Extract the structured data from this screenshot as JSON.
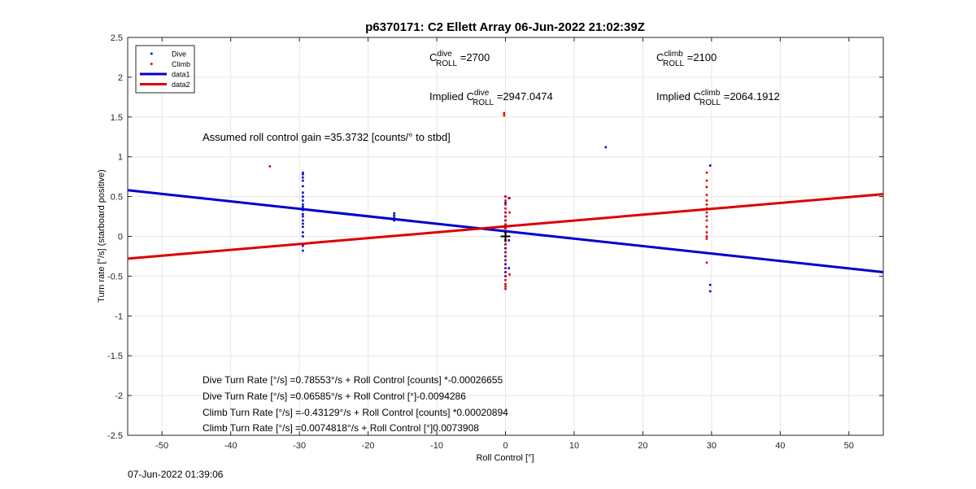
{
  "chart_data": {
    "type": "scatter",
    "title": "p6370171: C2 Ellett Array 06-Jun-2022 21:02:39Z",
    "xlabel": "Roll Control [°]",
    "ylabel": "Turn rate [°/s] (starboard positive)",
    "xlim": [
      -55,
      55
    ],
    "ylim": [
      -2.5,
      2.5
    ],
    "xticks": [
      -50,
      -40,
      -30,
      -20,
      -10,
      0,
      10,
      20,
      30,
      40,
      50
    ],
    "yticks": [
      -2.5,
      -2,
      -1.5,
      -1,
      -0.5,
      0,
      0.5,
      1,
      1.5,
      2,
      2.5
    ],
    "grid": true,
    "legend": {
      "placement": "top-left",
      "entries": [
        {
          "label": "Dive",
          "kind": "marker",
          "color": "#0000cc"
        },
        {
          "label": "Climb",
          "kind": "marker",
          "color": "#dd0000"
        },
        {
          "label": "data1",
          "kind": "line",
          "color": "#0000cc"
        },
        {
          "label": "data2",
          "kind": "line",
          "color": "#dd0000"
        }
      ]
    },
    "series": [
      {
        "name": "Dive",
        "color": "#0000cc",
        "points": [
          [
            -29.5,
            0.8
          ],
          [
            -29.5,
            0.78
          ],
          [
            -29.5,
            0.74
          ],
          [
            -29.5,
            0.7
          ],
          [
            -29.5,
            0.63
          ],
          [
            -29.5,
            0.55
          ],
          [
            -29.5,
            0.5
          ],
          [
            -29.5,
            0.45
          ],
          [
            -29.5,
            0.4
          ],
          [
            -29.5,
            0.37
          ],
          [
            -29.5,
            0.33
          ],
          [
            -29.5,
            0.28
          ],
          [
            -29.5,
            0.25
          ],
          [
            -29.5,
            0.2
          ],
          [
            -29.5,
            0.16
          ],
          [
            -29.5,
            0.12
          ],
          [
            -29.5,
            0.05
          ],
          [
            -29.5,
            0.0
          ],
          [
            -29.5,
            -0.12
          ],
          [
            -29.5,
            -0.18
          ],
          [
            -16.2,
            0.29
          ],
          [
            -16.2,
            0.26
          ],
          [
            -16.2,
            0.23
          ],
          [
            -16.2,
            0.2
          ],
          [
            0,
            0.5
          ],
          [
            0,
            0.42
          ],
          [
            0,
            0.3
          ],
          [
            0,
            0.25
          ],
          [
            0,
            0.2
          ],
          [
            0,
            0.15
          ],
          [
            0,
            0.1
          ],
          [
            0,
            0.05
          ],
          [
            0,
            0.0
          ],
          [
            0,
            -0.05
          ],
          [
            0,
            -0.1
          ],
          [
            0,
            -0.15
          ],
          [
            0,
            -0.2
          ],
          [
            0,
            -0.25
          ],
          [
            0,
            -0.3
          ],
          [
            0,
            -0.35
          ],
          [
            0,
            -0.4
          ],
          [
            0,
            -0.45
          ],
          [
            0,
            -0.5
          ],
          [
            0.5,
            0.48
          ],
          [
            0.5,
            -0.05
          ],
          [
            0.5,
            -0.4
          ],
          [
            14.6,
            1.12
          ],
          [
            29.8,
            0.89
          ],
          [
            29.8,
            -0.61
          ],
          [
            29.8,
            -0.69
          ]
        ]
      },
      {
        "name": "Climb",
        "color": "#dd0000",
        "points": [
          [
            -34.3,
            0.88
          ],
          [
            -0.2,
            1.55
          ],
          [
            -0.2,
            1.52
          ],
          [
            0,
            0.5
          ],
          [
            0,
            0.45
          ],
          [
            0,
            0.4
          ],
          [
            0,
            0.35
          ],
          [
            0,
            0.3
          ],
          [
            0,
            0.25
          ],
          [
            0,
            0.2
          ],
          [
            0,
            0.15
          ],
          [
            0,
            0.1
          ],
          [
            0,
            0.05
          ],
          [
            0,
            0.0
          ],
          [
            0,
            -0.05
          ],
          [
            0,
            -0.1
          ],
          [
            0,
            -0.2
          ],
          [
            0,
            -0.3
          ],
          [
            0,
            -0.4
          ],
          [
            0,
            -0.5
          ],
          [
            0,
            -0.55
          ],
          [
            0,
            -0.6
          ],
          [
            0,
            -0.63
          ],
          [
            0,
            -0.66
          ],
          [
            0.6,
            0.48
          ],
          [
            0.6,
            0.3
          ],
          [
            0.6,
            -0.48
          ],
          [
            29.3,
            0.8
          ],
          [
            29.3,
            0.7
          ],
          [
            29.3,
            0.62
          ],
          [
            29.3,
            0.52
          ],
          [
            29.3,
            0.45
          ],
          [
            29.3,
            0.4
          ],
          [
            29.3,
            0.35
          ],
          [
            29.3,
            0.3
          ],
          [
            29.3,
            0.25
          ],
          [
            29.3,
            0.2
          ],
          [
            29.3,
            0.12
          ],
          [
            29.3,
            0.05
          ],
          [
            29.3,
            0.0
          ],
          [
            29.3,
            -0.03
          ],
          [
            29.3,
            -0.33
          ]
        ]
      },
      {
        "name": "data1",
        "color": "#0000cc",
        "line": [
          [
            -55,
            0.58
          ],
          [
            55,
            -0.45
          ]
        ]
      },
      {
        "name": "data2",
        "color": "#dd0000",
        "line": [
          [
            -55,
            -0.28
          ],
          [
            55,
            0.53
          ]
        ]
      }
    ],
    "marker": {
      "x": 0,
      "y": 0,
      "shape": "plus",
      "color": "#000000"
    },
    "annotations": {
      "c_dive": {
        "pre": "C",
        "sup": "dive",
        "sub": "ROLL",
        "post": " =2700"
      },
      "c_climb": {
        "pre": "C",
        "sup": "climb",
        "sub": "ROLL",
        "post": " =2100"
      },
      "implied_dive": {
        "pre": "Implied C",
        "sup": "dive",
        "sub": "ROLL",
        "post": " =2947.0474"
      },
      "implied_climb": {
        "pre": "Implied C",
        "sup": "climb",
        "sub": "ROLL",
        "post": " =2064.1912"
      },
      "gain": "Assumed roll control gain =35.3732 [counts/° to stbd]",
      "fits": [
        "Dive Turn Rate [°/s] =0.78553°/s + Roll Control [counts] *-0.00026655",
        "Dive Turn Rate [°/s] =0.06585°/s + Roll Control [°]-0.0094286",
        "Climb Turn Rate [°/s] =-0.43129°/s + Roll Control [counts] *0.00020894",
        "Climb Turn Rate [°/s] =0.0074818°/s + Roll Control [°]0.0073908"
      ]
    }
  },
  "footer": {
    "timestamp": "07-Jun-2022 01:39:06"
  }
}
